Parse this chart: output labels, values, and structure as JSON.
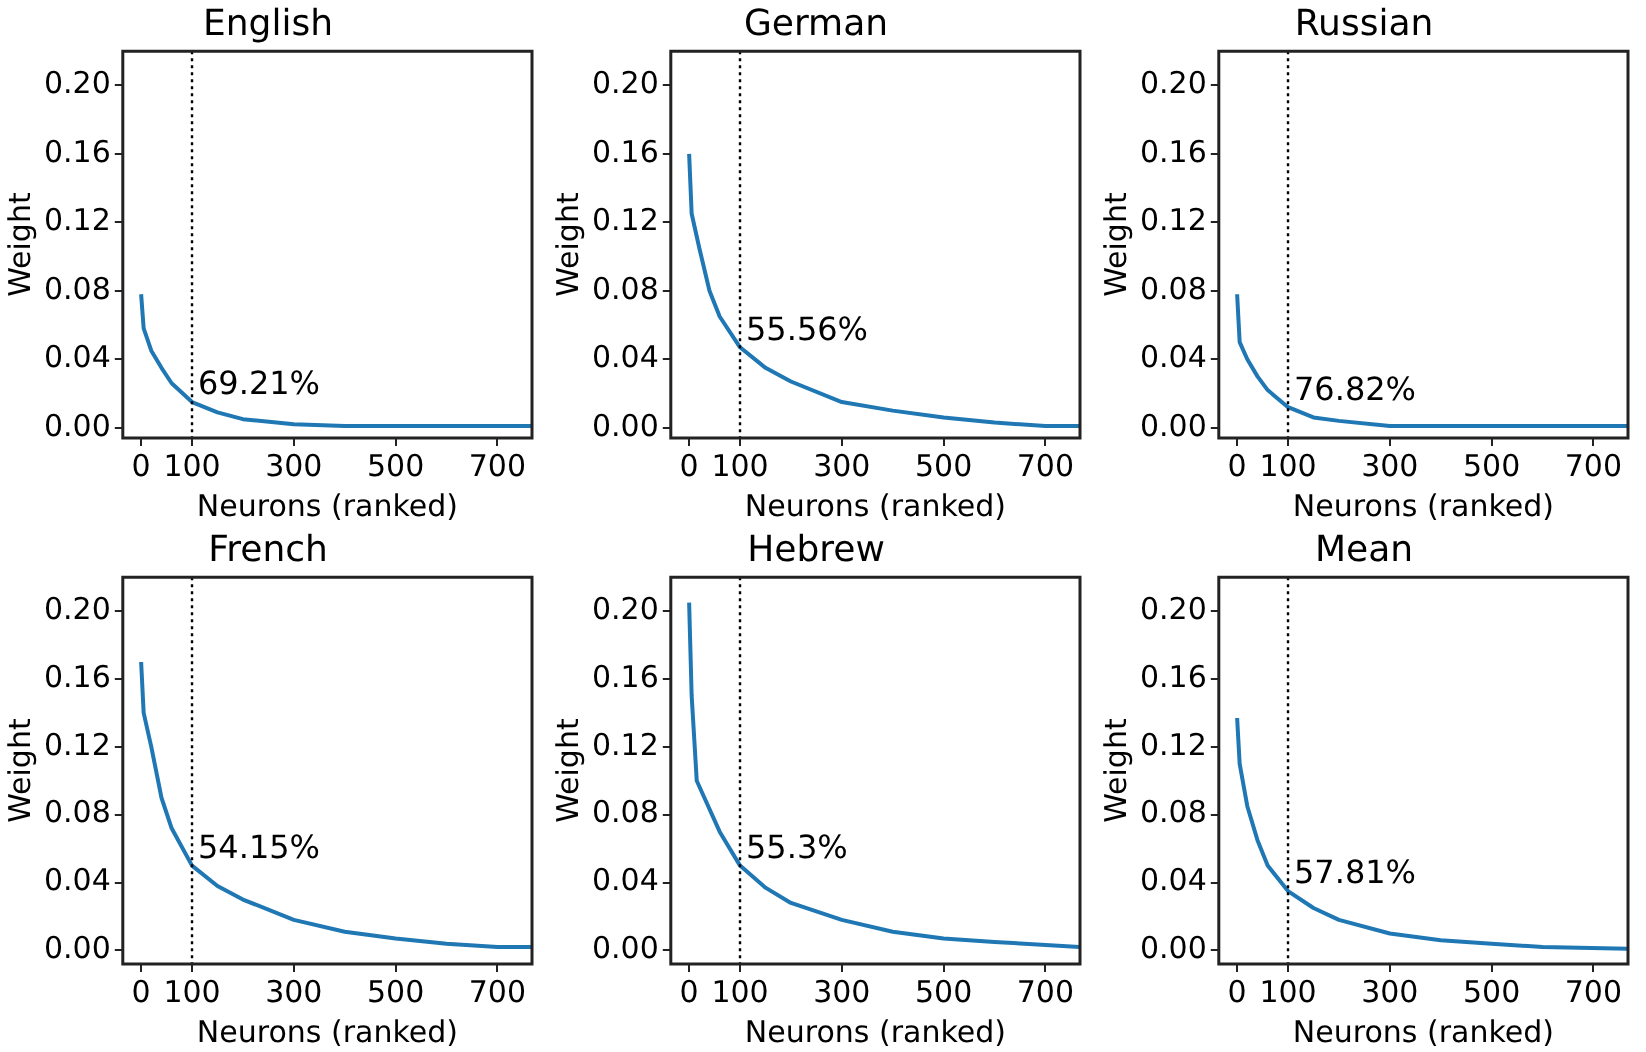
{
  "chart_data": [
    {
      "type": "line",
      "title": "English",
      "xlabel": "Neurons (ranked)",
      "ylabel": "Weight",
      "x": [
        0,
        5,
        20,
        40,
        60,
        100,
        150,
        200,
        300,
        400,
        767
      ],
      "series": [
        {
          "color": "#1f77b4",
          "values": [
            0.078,
            0.058,
            0.045,
            0.035,
            0.026,
            0.015,
            0.009,
            0.005,
            0.002,
            0.001,
            0.001
          ]
        }
      ],
      "xlim": [
        -36,
        768
      ],
      "xticks": [
        0,
        100,
        300,
        500,
        700
      ],
      "ylim": [
        -0.006,
        0.22
      ],
      "yticks": [
        {
          "value": 0,
          "label": "0.00"
        },
        {
          "value": 0.04,
          "label": "0.04"
        },
        {
          "value": 0.08,
          "label": "0.08"
        },
        {
          "value": 0.12,
          "label": "0.12"
        },
        {
          "value": 0.16,
          "label": "0.16"
        },
        {
          "value": 0.2,
          "label": "0.20"
        }
      ],
      "ref_lines": [
        {
          "axis": "x",
          "value": 100,
          "line_style": "dotted",
          "color": "#000000"
        }
      ],
      "annotations": [
        "69.21%"
      ],
      "grid": false,
      "legend": false
    },
    {
      "type": "line",
      "title": "German",
      "xlabel": "Neurons (ranked)",
      "ylabel": "Weight",
      "x": [
        0,
        5,
        20,
        40,
        60,
        100,
        150,
        200,
        300,
        400,
        500,
        600,
        700,
        767
      ],
      "series": [
        {
          "color": "#1f77b4",
          "values": [
            0.16,
            0.125,
            0.105,
            0.08,
            0.065,
            0.047,
            0.035,
            0.027,
            0.015,
            0.01,
            0.006,
            0.003,
            0.001,
            0.001
          ]
        }
      ],
      "xlim": [
        -36,
        768
      ],
      "xticks": [
        0,
        100,
        300,
        500,
        700
      ],
      "ylim": [
        -0.006,
        0.22
      ],
      "yticks": [
        {
          "value": 0,
          "label": "0.00"
        },
        {
          "value": 0.04,
          "label": "0.04"
        },
        {
          "value": 0.08,
          "label": "0.08"
        },
        {
          "value": 0.12,
          "label": "0.12"
        },
        {
          "value": 0.16,
          "label": "0.16"
        },
        {
          "value": 0.2,
          "label": "0.20"
        }
      ],
      "ref_lines": [
        {
          "axis": "x",
          "value": 100,
          "line_style": "dotted",
          "color": "#000000"
        }
      ],
      "annotations": [
        "55.56%"
      ],
      "grid": false,
      "legend": false
    },
    {
      "type": "line",
      "title": "Russian",
      "xlabel": "Neurons (ranked)",
      "ylabel": "Weight",
      "x": [
        0,
        5,
        20,
        40,
        60,
        100,
        150,
        200,
        300,
        767
      ],
      "series": [
        {
          "color": "#1f77b4",
          "values": [
            0.078,
            0.05,
            0.04,
            0.03,
            0.022,
            0.012,
            0.006,
            0.004,
            0.001,
            0.001
          ]
        }
      ],
      "xlim": [
        -36,
        768
      ],
      "xticks": [
        0,
        100,
        300,
        500,
        700
      ],
      "ylim": [
        -0.006,
        0.22
      ],
      "yticks": [
        {
          "value": 0,
          "label": "0.00"
        },
        {
          "value": 0.04,
          "label": "0.04"
        },
        {
          "value": 0.08,
          "label": "0.08"
        },
        {
          "value": 0.12,
          "label": "0.12"
        },
        {
          "value": 0.16,
          "label": "0.16"
        },
        {
          "value": 0.2,
          "label": "0.20"
        }
      ],
      "ref_lines": [
        {
          "axis": "x",
          "value": 100,
          "line_style": "dotted",
          "color": "#000000"
        }
      ],
      "annotations": [
        "76.82%"
      ],
      "grid": false,
      "legend": false
    },
    {
      "type": "line",
      "title": "French",
      "xlabel": "Neurons (ranked)",
      "ylabel": "Weight",
      "x": [
        0,
        5,
        20,
        40,
        60,
        100,
        150,
        200,
        300,
        400,
        500,
        600,
        700,
        767
      ],
      "series": [
        {
          "color": "#1f77b4",
          "values": [
            0.17,
            0.14,
            0.12,
            0.09,
            0.072,
            0.05,
            0.038,
            0.03,
            0.018,
            0.011,
            0.007,
            0.004,
            0.002,
            0.002
          ]
        }
      ],
      "xlim": [
        -36,
        768
      ],
      "xticks": [
        0,
        100,
        300,
        500,
        700
      ],
      "ylim": [
        -0.008,
        0.22
      ],
      "yticks": [
        {
          "value": 0,
          "label": "0.00"
        },
        {
          "value": 0.04,
          "label": "0.04"
        },
        {
          "value": 0.08,
          "label": "0.08"
        },
        {
          "value": 0.12,
          "label": "0.12"
        },
        {
          "value": 0.16,
          "label": "0.16"
        },
        {
          "value": 0.2,
          "label": "0.20"
        }
      ],
      "ref_lines": [
        {
          "axis": "x",
          "value": 100,
          "line_style": "dotted",
          "color": "#000000"
        }
      ],
      "annotations": [
        "54.15%"
      ],
      "grid": false,
      "legend": false
    },
    {
      "type": "line",
      "title": "Hebrew",
      "xlabel": "Neurons (ranked)",
      "ylabel": "Weight",
      "x": [
        0,
        5,
        15,
        30,
        60,
        100,
        150,
        200,
        300,
        400,
        500,
        600,
        767
      ],
      "series": [
        {
          "color": "#1f77b4",
          "values": [
            0.205,
            0.15,
            0.1,
            0.09,
            0.07,
            0.05,
            0.037,
            0.028,
            0.018,
            0.011,
            0.007,
            0.005,
            0.002
          ]
        }
      ],
      "xlim": [
        -36,
        768
      ],
      "xticks": [
        0,
        100,
        300,
        500,
        700
      ],
      "ylim": [
        -0.008,
        0.22
      ],
      "yticks": [
        {
          "value": 0,
          "label": "0.00"
        },
        {
          "value": 0.04,
          "label": "0.04"
        },
        {
          "value": 0.08,
          "label": "0.08"
        },
        {
          "value": 0.12,
          "label": "0.12"
        },
        {
          "value": 0.16,
          "label": "0.16"
        },
        {
          "value": 0.2,
          "label": "0.20"
        }
      ],
      "ref_lines": [
        {
          "axis": "x",
          "value": 100,
          "line_style": "dotted",
          "color": "#000000"
        }
      ],
      "annotations": [
        "55.3%"
      ],
      "grid": false,
      "legend": false
    },
    {
      "type": "line",
      "title": "Mean",
      "xlabel": "Neurons (ranked)",
      "ylabel": "Weight",
      "x": [
        0,
        5,
        20,
        40,
        60,
        100,
        150,
        200,
        300,
        400,
        500,
        600,
        767
      ],
      "series": [
        {
          "color": "#1f77b4",
          "values": [
            0.137,
            0.11,
            0.085,
            0.065,
            0.05,
            0.035,
            0.025,
            0.018,
            0.01,
            0.006,
            0.004,
            0.002,
            0.001
          ]
        }
      ],
      "xlim": [
        -36,
        768
      ],
      "xticks": [
        0,
        100,
        300,
        500,
        700
      ],
      "ylim": [
        -0.008,
        0.22
      ],
      "yticks": [
        {
          "value": 0,
          "label": "0.00"
        },
        {
          "value": 0.04,
          "label": "0.04"
        },
        {
          "value": 0.08,
          "label": "0.08"
        },
        {
          "value": 0.12,
          "label": "0.12"
        },
        {
          "value": 0.16,
          "label": "0.16"
        },
        {
          "value": 0.2,
          "label": "0.20"
        }
      ],
      "ref_lines": [
        {
          "axis": "x",
          "value": 100,
          "line_style": "dotted",
          "color": "#000000"
        }
      ],
      "annotations": [
        "57.81%"
      ],
      "grid": false,
      "legend": false
    }
  ]
}
